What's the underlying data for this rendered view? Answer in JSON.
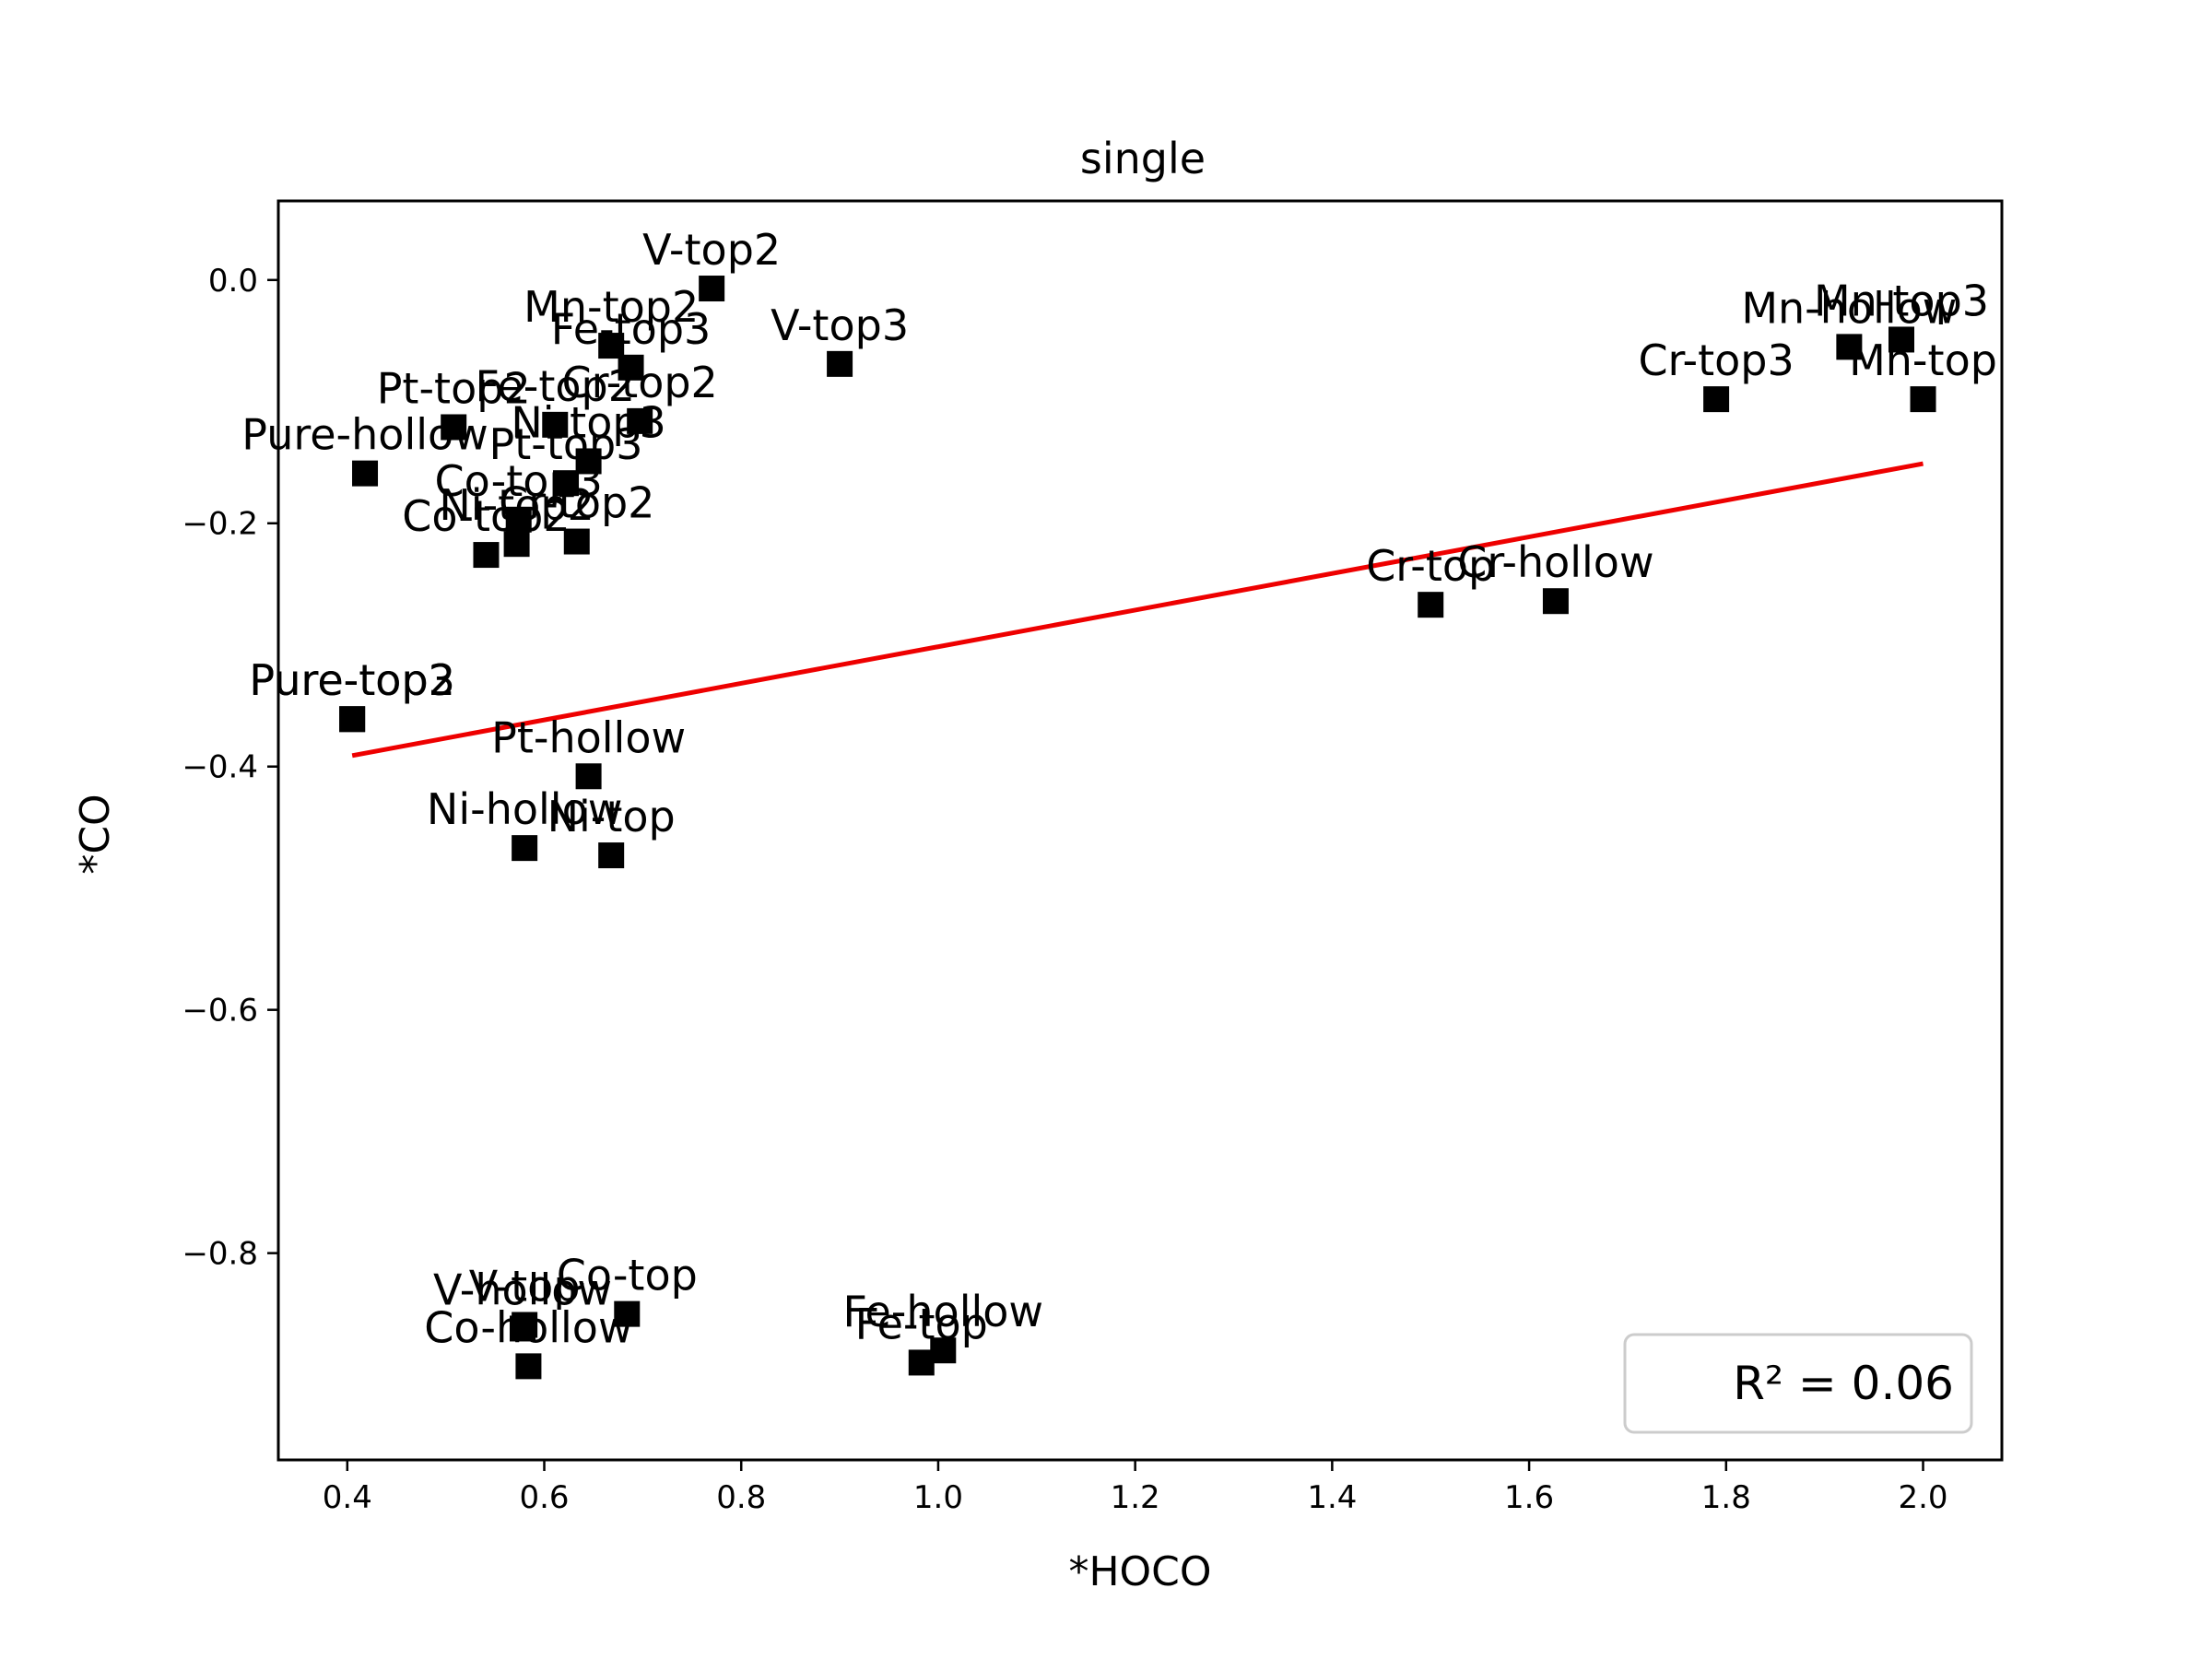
{
  "chart_data": {
    "type": "scatter",
    "title": "single",
    "xlabel": "*HOCO",
    "ylabel": "*CO",
    "xlim": [
      0.33,
      2.08
    ],
    "ylim": [
      -0.97,
      0.065
    ],
    "x_ticks": [
      0.4,
      0.6,
      0.8,
      1.0,
      1.2,
      1.4,
      1.6,
      1.8,
      2.0
    ],
    "x_tick_labels": [
      "0.4",
      "0.6",
      "0.8",
      "1.0",
      "1.2",
      "1.4",
      "1.6",
      "1.8",
      "2.0"
    ],
    "y_ticks": [
      0.0,
      -0.2,
      -0.4,
      -0.6,
      -0.8
    ],
    "y_tick_labels": [
      "0.0",
      "−0.2",
      "−0.4",
      "−0.6",
      "−0.8"
    ],
    "grid": false,
    "marker_color": "#000000",
    "points": [
      {
        "label": "V-top2",
        "x": 0.77,
        "y": -0.007
      },
      {
        "label": "Mn-top2",
        "x": 0.668,
        "y": -0.054
      },
      {
        "label": "Fe-top3",
        "x": 0.688,
        "y": -0.072
      },
      {
        "label": "V-top3",
        "x": 0.9,
        "y": -0.069
      },
      {
        "label": "Cr-top2",
        "x": 0.697,
        "y": -0.116
      },
      {
        "label": "Fe-top2",
        "x": 0.611,
        "y": -0.119
      },
      {
        "label": "Pt-top2",
        "x": 0.508,
        "y": -0.121
      },
      {
        "label": "Ni-top3",
        "x": 0.645,
        "y": -0.149
      },
      {
        "label": "Pt-top3",
        "x": 0.622,
        "y": -0.167
      },
      {
        "label": "Pure-hollow",
        "x": 0.418,
        "y": -0.159
      },
      {
        "label": "Co-top3",
        "x": 0.574,
        "y": -0.197
      },
      {
        "label": "Cr-top2",
        "x": 0.633,
        "y": -0.215
      },
      {
        "label": "Ni-top2",
        "x": 0.572,
        "y": -0.217
      },
      {
        "label": "Co-top2",
        "x": 0.541,
        "y": -0.226
      },
      {
        "label": "Pure-top3",
        "x": 0.405,
        "y": -0.361
      },
      {
        "label": "Pure-top2",
        "x": 0.405,
        "y": -0.361
      },
      {
        "label": "Pt-hollow",
        "x": 0.645,
        "y": -0.408
      },
      {
        "label": "Ni-hollow",
        "x": 0.58,
        "y": -0.467
      },
      {
        "label": "Ni-top",
        "x": 0.668,
        "y": -0.473
      },
      {
        "label": "Cr-top",
        "x": 1.5,
        "y": -0.267
      },
      {
        "label": "Cr-hollow",
        "x": 1.627,
        "y": -0.264
      },
      {
        "label": "Mn-top3",
        "x": 1.978,
        "y": -0.049
      },
      {
        "label": "Mn-hollow",
        "x": 1.925,
        "y": -0.055
      },
      {
        "label": "Cr-top3",
        "x": 1.79,
        "y": -0.098
      },
      {
        "label": "Mn-top",
        "x": 2.0,
        "y": -0.098
      },
      {
        "label": "V-top",
        "x": 0.58,
        "y": -0.859
      },
      {
        "label": "V-hollow",
        "x": 0.578,
        "y": -0.862
      },
      {
        "label": "Co-top",
        "x": 0.684,
        "y": -0.85
      },
      {
        "label": "Co-hollow",
        "x": 0.584,
        "y": -0.893
      },
      {
        "label": "Fe-hollow",
        "x": 1.005,
        "y": -0.88
      },
      {
        "label": "Fe-top",
        "x": 0.983,
        "y": -0.89
      }
    ],
    "fit_line": {
      "color": "#ee0000",
      "x": [
        0.405,
        2.0
      ],
      "y": [
        -0.391,
        -0.151
      ]
    },
    "legend": {
      "text": "R² = 0.06",
      "placement": "lower-right"
    }
  }
}
